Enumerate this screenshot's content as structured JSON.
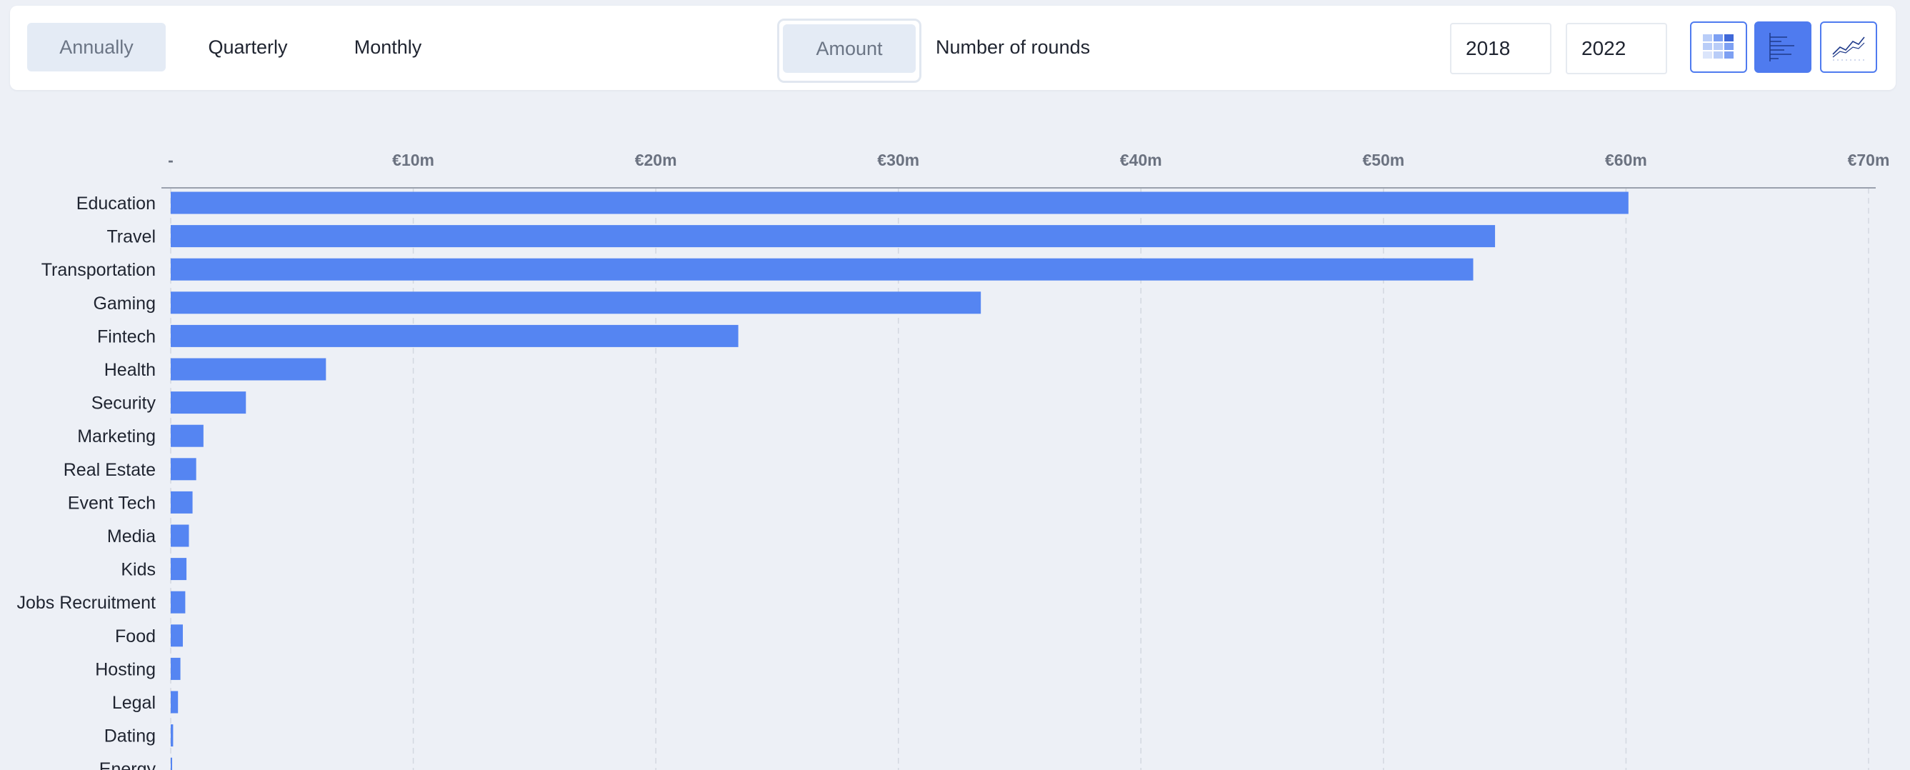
{
  "toolbar": {
    "period_tabs": [
      "Annually",
      "Quarterly",
      "Monthly"
    ],
    "active_period": "Annually",
    "metric_tabs": [
      "Amount",
      "Number of rounds"
    ],
    "active_metric": "Amount",
    "year_from": "2018",
    "year_to": "2022",
    "views": [
      {
        "icon": "table-grid-icon",
        "selected": false
      },
      {
        "icon": "bar-chart-icon",
        "selected": true
      },
      {
        "icon": "line-chart-icon",
        "selected": false
      }
    ]
  },
  "colors": {
    "bar": "#5585f2",
    "accent": "#4f7bef",
    "background": "#edf0f6",
    "grid": "#d3d8e0"
  },
  "chart_data": {
    "type": "bar",
    "orientation": "horizontal",
    "x_axis_position": "top",
    "grid": true,
    "xlim": [
      0,
      70
    ],
    "unit": "€m",
    "tick_labels": [
      "-",
      "€10m",
      "€20m",
      "€30m",
      "€40m",
      "€50m",
      "€60m",
      "€70m"
    ],
    "categories": [
      "Education",
      "Travel",
      "Transportation",
      "Gaming",
      "Fintech",
      "Health",
      "Security",
      "Marketing",
      "Real Estate",
      "Event Tech",
      "Media",
      "Kids",
      "Jobs Recruitment",
      "Food",
      "Hosting",
      "Legal",
      "Dating",
      "Energy"
    ],
    "values": [
      60.1,
      54.6,
      53.7,
      33.4,
      23.4,
      6.4,
      3.1,
      1.35,
      1.05,
      0.9,
      0.75,
      0.65,
      0.6,
      0.5,
      0.4,
      0.3,
      0.1,
      0.05
    ]
  }
}
